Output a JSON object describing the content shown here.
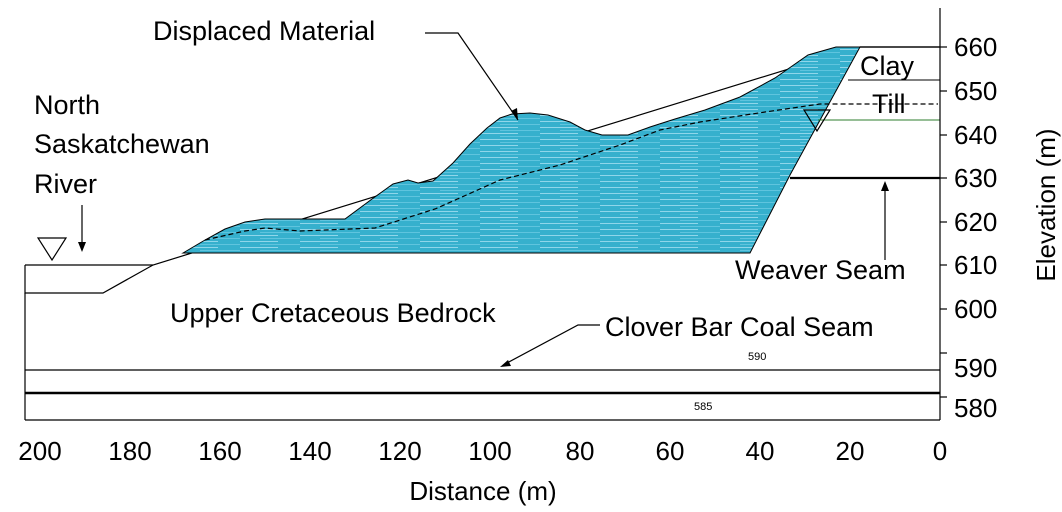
{
  "labels": {
    "displaced_material": "Displaced Material",
    "river_line1": "North",
    "river_line2": "Saskatchewan",
    "river_line3": "River",
    "bedrock": "Upper Cretaceous Bedrock",
    "clover_bar": "Clover Bar Coal Seam",
    "weaver_seam": "Weaver Seam",
    "clay": "Clay",
    "till": "Till",
    "seam_590": "590",
    "seam_585": "585"
  },
  "axes": {
    "xlabel": "Distance (m)",
    "ylabel": "Elevation (m)",
    "x_ticks": [
      "200",
      "180",
      "160",
      "140",
      "120",
      "100",
      "80",
      "60",
      "40",
      "20",
      "0"
    ],
    "y_ticks": [
      "660",
      "650",
      "640",
      "630",
      "620",
      "610",
      "600",
      "590",
      "580"
    ]
  },
  "colors": {
    "displaced_fill": "#36b0cd",
    "displaced_light": "#9fdcec",
    "ground_line": "#000000",
    "till_line": "#2e7d2e"
  }
}
